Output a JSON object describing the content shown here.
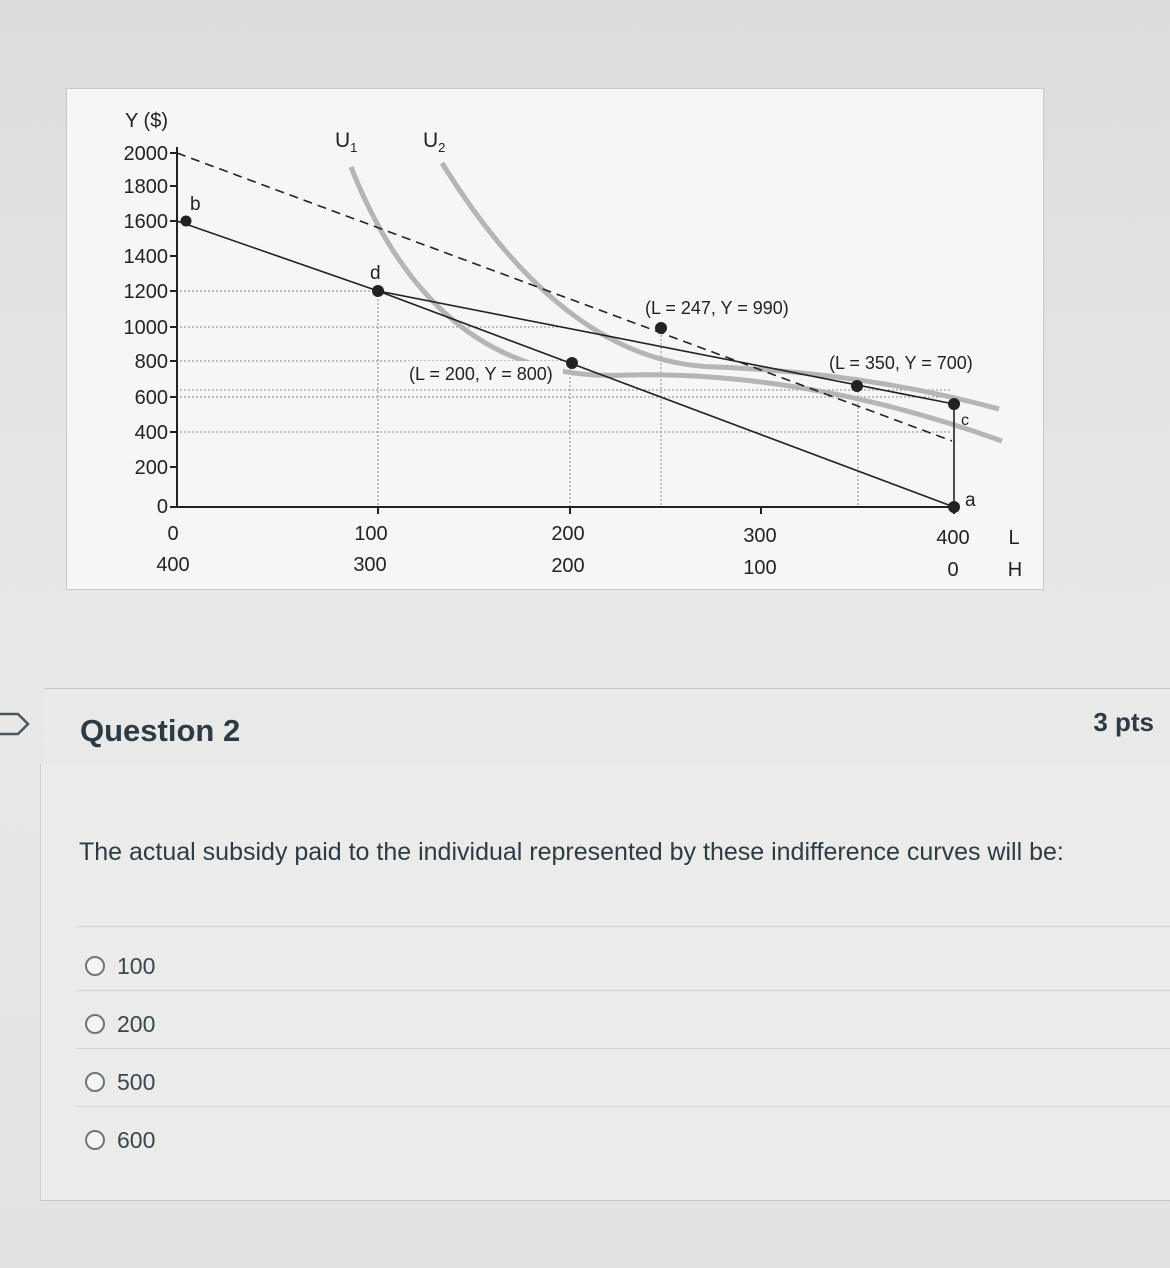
{
  "figure": {
    "y_axis_title": "Y ($)",
    "y_ticks": [
      "2000",
      "1800",
      "1600",
      "1400",
      "1200",
      "1000",
      "800",
      "600",
      "400",
      "200",
      "0"
    ],
    "x_ticks_l": [
      "0",
      "100",
      "200",
      "300",
      "400"
    ],
    "x_ticks_h": [
      "400",
      "300",
      "200",
      "100",
      "0"
    ],
    "axis_l_label": "L",
    "axis_h_label": "H",
    "curve_u1_label": "U",
    "curve_u1_sub": "1",
    "curve_u2_label": "U",
    "curve_u2_sub": "2",
    "point_labels": {
      "a": "a",
      "b": "b",
      "c": "c",
      "d": "d"
    },
    "annotations": {
      "p200": "(L = 200, Y = 800)",
      "p247": "(L = 247, Y = 990)",
      "p350": "(L = 350, Y = 700)"
    },
    "colors": {
      "indifference_curve": "#b5b5b3",
      "budget_line": "#222222"
    }
  },
  "question": {
    "flag_icon": "bookmark-flag-icon",
    "title": "Question 2",
    "points": "3 pts",
    "text": "The actual subsidy paid to the individual represented by these indifference curves will be:",
    "answers": [
      {
        "label": "100",
        "selected": false
      },
      {
        "label": "200",
        "selected": false
      },
      {
        "label": "500",
        "selected": false
      },
      {
        "label": "600",
        "selected": false
      }
    ]
  }
}
